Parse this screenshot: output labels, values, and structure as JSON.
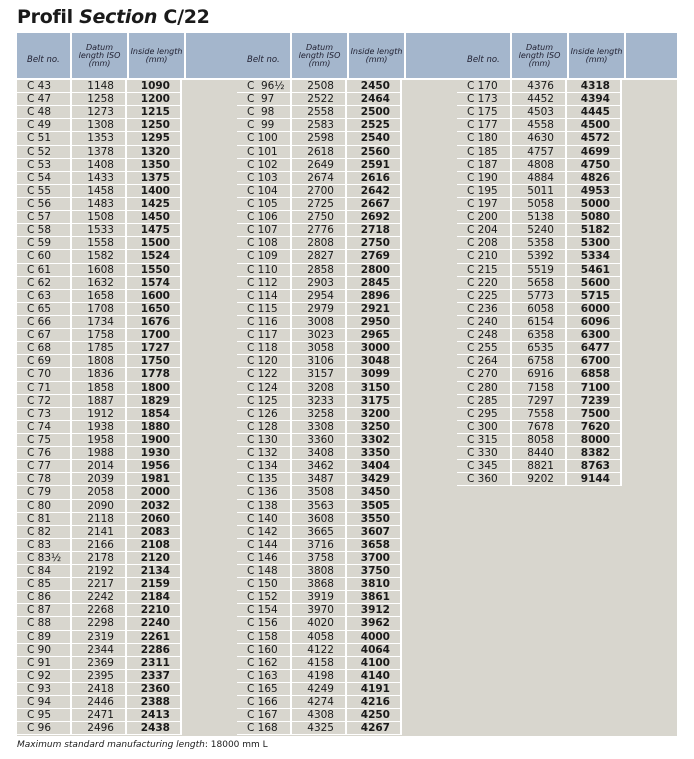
{
  "title": {
    "main": "Profil",
    "italic": "Section",
    "code": "C/22"
  },
  "headers": {
    "belt": "Belt no.",
    "datum": "Datum length ISO (mm)",
    "inside": "Inside length (mm)"
  },
  "groups": [
    [
      [
        "C 43",
        "1148",
        "1090"
      ],
      [
        "C 47",
        "1258",
        "1200"
      ],
      [
        "C 48",
        "1273",
        "1215"
      ],
      [
        "C 49",
        "1308",
        "1250"
      ],
      [
        "C 51",
        "1353",
        "1295"
      ],
      [
        "C 52",
        "1378",
        "1320"
      ],
      [
        "C 53",
        "1408",
        "1350"
      ],
      [
        "C 54",
        "1433",
        "1375"
      ],
      [
        "C 55",
        "1458",
        "1400"
      ],
      [
        "C 56",
        "1483",
        "1425"
      ],
      [
        "C 57",
        "1508",
        "1450"
      ],
      [
        "C 58",
        "1533",
        "1475"
      ],
      [
        "C 59",
        "1558",
        "1500"
      ],
      [
        "C 60",
        "1582",
        "1524"
      ],
      [
        "C 61",
        "1608",
        "1550"
      ],
      [
        "C 62",
        "1632",
        "1574"
      ],
      [
        "C 63",
        "1658",
        "1600"
      ],
      [
        "C 65",
        "1708",
        "1650"
      ],
      [
        "C 66",
        "1734",
        "1676"
      ],
      [
        "C 67",
        "1758",
        "1700"
      ],
      [
        "C 68",
        "1785",
        "1727"
      ],
      [
        "C 69",
        "1808",
        "1750"
      ],
      [
        "C 70",
        "1836",
        "1778"
      ],
      [
        "C 71",
        "1858",
        "1800"
      ],
      [
        "C 72",
        "1887",
        "1829"
      ],
      [
        "C 73",
        "1912",
        "1854"
      ],
      [
        "C 74",
        "1938",
        "1880"
      ],
      [
        "C 75",
        "1958",
        "1900"
      ],
      [
        "C 76",
        "1988",
        "1930"
      ],
      [
        "C 77",
        "2014",
        "1956"
      ],
      [
        "C 78",
        "2039",
        "1981"
      ],
      [
        "C 79",
        "2058",
        "2000"
      ],
      [
        "C 80",
        "2090",
        "2032"
      ],
      [
        "C 81",
        "2118",
        "2060"
      ],
      [
        "C 82",
        "2141",
        "2083"
      ],
      [
        "C 83",
        "2166",
        "2108"
      ],
      [
        "C 83½",
        "2178",
        "2120"
      ],
      [
        "C 84",
        "2192",
        "2134"
      ],
      [
        "C 85",
        "2217",
        "2159"
      ],
      [
        "C 86",
        "2242",
        "2184"
      ],
      [
        "C 87",
        "2268",
        "2210"
      ],
      [
        "C 88",
        "2298",
        "2240"
      ],
      [
        "C 89",
        "2319",
        "2261"
      ],
      [
        "C 90",
        "2344",
        "2286"
      ],
      [
        "C 91",
        "2369",
        "2311"
      ],
      [
        "C 92",
        "2395",
        "2337"
      ],
      [
        "C 93",
        "2418",
        "2360"
      ],
      [
        "C 94",
        "2446",
        "2388"
      ],
      [
        "C 95",
        "2471",
        "2413"
      ],
      [
        "C 96",
        "2496",
        "2438"
      ]
    ],
    [
      [
        "C  96½",
        "2508",
        "2450"
      ],
      [
        "C  97",
        "2522",
        "2464"
      ],
      [
        "C  98",
        "2558",
        "2500"
      ],
      [
        "C  99",
        "2583",
        "2525"
      ],
      [
        "C 100",
        "2598",
        "2540"
      ],
      [
        "C 101",
        "2618",
        "2560"
      ],
      [
        "C 102",
        "2649",
        "2591"
      ],
      [
        "C 103",
        "2674",
        "2616"
      ],
      [
        "C 104",
        "2700",
        "2642"
      ],
      [
        "C 105",
        "2725",
        "2667"
      ],
      [
        "C 106",
        "2750",
        "2692"
      ],
      [
        "C 107",
        "2776",
        "2718"
      ],
      [
        "C 108",
        "2808",
        "2750"
      ],
      [
        "C 109",
        "2827",
        "2769"
      ],
      [
        "C 110",
        "2858",
        "2800"
      ],
      [
        "C 112",
        "2903",
        "2845"
      ],
      [
        "C 114",
        "2954",
        "2896"
      ],
      [
        "C 115",
        "2979",
        "2921"
      ],
      [
        "C 116",
        "3008",
        "2950"
      ],
      [
        "C 117",
        "3023",
        "2965"
      ],
      [
        "C 118",
        "3058",
        "3000"
      ],
      [
        "C 120",
        "3106",
        "3048"
      ],
      [
        "C 122",
        "3157",
        "3099"
      ],
      [
        "C 124",
        "3208",
        "3150"
      ],
      [
        "C 125",
        "3233",
        "3175"
      ],
      [
        "C 126",
        "3258",
        "3200"
      ],
      [
        "C 128",
        "3308",
        "3250"
      ],
      [
        "C 130",
        "3360",
        "3302"
      ],
      [
        "C 132",
        "3408",
        "3350"
      ],
      [
        "C 134",
        "3462",
        "3404"
      ],
      [
        "C 135",
        "3487",
        "3429"
      ],
      [
        "C 136",
        "3508",
        "3450"
      ],
      [
        "C 138",
        "3563",
        "3505"
      ],
      [
        "C 140",
        "3608",
        "3550"
      ],
      [
        "C 142",
        "3665",
        "3607"
      ],
      [
        "C 144",
        "3716",
        "3658"
      ],
      [
        "C 146",
        "3758",
        "3700"
      ],
      [
        "C 148",
        "3808",
        "3750"
      ],
      [
        "C 150",
        "3868",
        "3810"
      ],
      [
        "C 152",
        "3919",
        "3861"
      ],
      [
        "C 154",
        "3970",
        "3912"
      ],
      [
        "C 156",
        "4020",
        "3962"
      ],
      [
        "C 158",
        "4058",
        "4000"
      ],
      [
        "C 160",
        "4122",
        "4064"
      ],
      [
        "C 162",
        "4158",
        "4100"
      ],
      [
        "C 163",
        "4198",
        "4140"
      ],
      [
        "C 165",
        "4249",
        "4191"
      ],
      [
        "C 166",
        "4274",
        "4216"
      ],
      [
        "C 167",
        "4308",
        "4250"
      ],
      [
        "C 168",
        "4325",
        "4267"
      ]
    ],
    [
      [
        "C 170",
        "4376",
        "4318"
      ],
      [
        "C 173",
        "4452",
        "4394"
      ],
      [
        "C 175",
        "4503",
        "4445"
      ],
      [
        "C 177",
        "4558",
        "4500"
      ],
      [
        "C 180",
        "4630",
        "4572"
      ],
      [
        "C 185",
        "4757",
        "4699"
      ],
      [
        "C 187",
        "4808",
        "4750"
      ],
      [
        "C 190",
        "4884",
        "4826"
      ],
      [
        "C 195",
        "5011",
        "4953"
      ],
      [
        "C 197",
        "5058",
        "5000"
      ],
      [
        "C 200",
        "5138",
        "5080"
      ],
      [
        "C 204",
        "5240",
        "5182"
      ],
      [
        "C 208",
        "5358",
        "5300"
      ],
      [
        "C 210",
        "5392",
        "5334"
      ],
      [
        "C 215",
        "5519",
        "5461"
      ],
      [
        "C 220",
        "5658",
        "5600"
      ],
      [
        "C 225",
        "5773",
        "5715"
      ],
      [
        "C 236",
        "6058",
        "6000"
      ],
      [
        "C 240",
        "6154",
        "6096"
      ],
      [
        "C 248",
        "6358",
        "6300"
      ],
      [
        "C 255",
        "6535",
        "6477"
      ],
      [
        "C 264",
        "6758",
        "6700"
      ],
      [
        "C 270",
        "6916",
        "6858"
      ],
      [
        "C 280",
        "7158",
        "7100"
      ],
      [
        "C 285",
        "7297",
        "7239"
      ],
      [
        "C 295",
        "7558",
        "7500"
      ],
      [
        "C 300",
        "7678",
        "7620"
      ],
      [
        "C 315",
        "8058",
        "8000"
      ],
      [
        "C 330",
        "8440",
        "8382"
      ],
      [
        "C 345",
        "8821",
        "8763"
      ],
      [
        "C 360",
        "9202",
        "9144"
      ]
    ]
  ],
  "footer": {
    "label": "Maximum standard manufacturing length",
    "value": ": 18000 mm L"
  },
  "colors": {
    "header": "#a4b6cc",
    "cell": "#d8d6ce"
  }
}
